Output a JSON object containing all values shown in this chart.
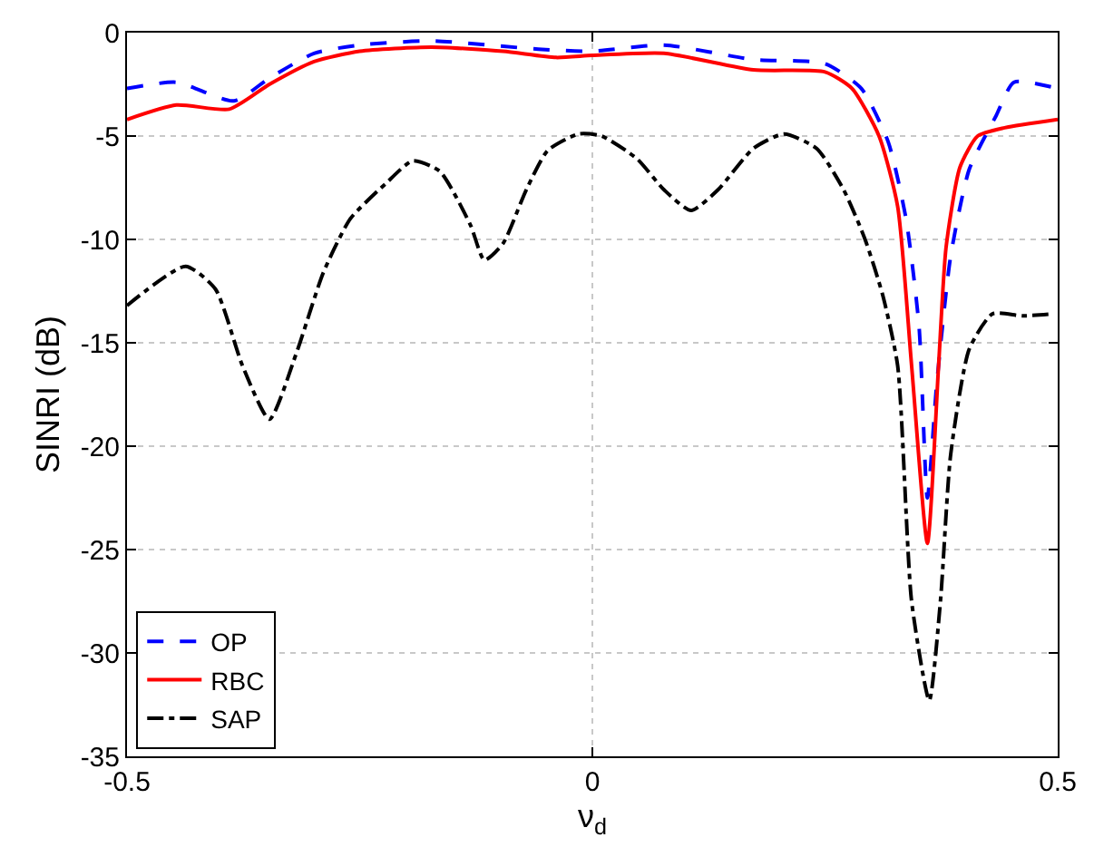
{
  "chart_data": {
    "type": "line",
    "xlabel": "ν$_{d}$",
    "ylabel": "SINRI (dB)",
    "xlim": [
      -0.5,
      0.5
    ],
    "xticks": [
      -0.5,
      0,
      0.5
    ],
    "ylim": [
      -35,
      0
    ],
    "yticks": [
      -35,
      -30,
      -25,
      -20,
      -15,
      -10,
      -5,
      0
    ],
    "grid": true,
    "legend": "bottom left",
    "series": [
      {
        "name": "OP",
        "color": "#0000ff",
        "line_style": "dashed",
        "x": [
          -0.5,
          -0.447,
          -0.385,
          -0.347,
          -0.299,
          -0.25,
          -0.173,
          -0.058,
          0,
          0.077,
          0.173,
          0.25,
          0.289,
          0.318,
          0.337,
          0.351,
          0.36,
          0.37,
          0.385,
          0.405,
          0.434,
          0.453,
          0.5
        ],
        "values": [
          -2.7,
          -2.4,
          -3.3,
          -2.2,
          -1.0,
          -0.6,
          -0.4,
          -0.8,
          -0.9,
          -0.6,
          -1.3,
          -1.5,
          -2.7,
          -5.3,
          -9.0,
          -14.2,
          -22.5,
          -17.0,
          -10.8,
          -6.6,
          -4.0,
          -2.4,
          -2.7
        ]
      },
      {
        "name": "RBC",
        "color": "#ff0000",
        "line_style": "solid",
        "x": [
          -0.5,
          -0.447,
          -0.39,
          -0.347,
          -0.299,
          -0.25,
          -0.173,
          -0.096,
          -0.039,
          0,
          0.077,
          0.173,
          0.25,
          0.279,
          0.308,
          0.328,
          0.343,
          0.36,
          0.372,
          0.38,
          0.395,
          0.414,
          0.443,
          0.5
        ],
        "values": [
          -4.2,
          -3.5,
          -3.7,
          -2.5,
          -1.4,
          -0.9,
          -0.7,
          -0.9,
          -1.2,
          -1.1,
          -1.0,
          -1.8,
          -1.9,
          -2.7,
          -5.0,
          -8.4,
          -16.1,
          -24.7,
          -16.1,
          -10.4,
          -6.5,
          -5.0,
          -4.6,
          -4.2
        ]
      },
      {
        "name": "SAP",
        "color": "#000000",
        "line_style": "dashdot",
        "x": [
          -0.5,
          -0.437,
          -0.405,
          -0.376,
          -0.347,
          -0.318,
          -0.289,
          -0.26,
          -0.222,
          -0.193,
          -0.164,
          -0.131,
          -0.116,
          -0.096,
          -0.071,
          -0.048,
          -0.015,
          0.01,
          0.048,
          0.077,
          0.106,
          0.135,
          0.173,
          0.206,
          0.241,
          0.27,
          0.293,
          0.312,
          0.328,
          0.343,
          0.362,
          0.374,
          0.385,
          0.405,
          0.43,
          0.462,
          0.495
        ],
        "values": [
          -13.2,
          -11.3,
          -12.4,
          -16.1,
          -18.7,
          -15.5,
          -11.6,
          -9.0,
          -7.3,
          -6.2,
          -6.7,
          -9.3,
          -11.0,
          -10.2,
          -7.6,
          -5.7,
          -4.9,
          -5.0,
          -6.1,
          -7.6,
          -8.6,
          -7.6,
          -5.6,
          -4.9,
          -5.6,
          -7.6,
          -10.0,
          -12.7,
          -16.1,
          -27.5,
          -32.3,
          -27.5,
          -20.4,
          -15.3,
          -13.6,
          -13.7,
          -13.6
        ]
      }
    ]
  }
}
